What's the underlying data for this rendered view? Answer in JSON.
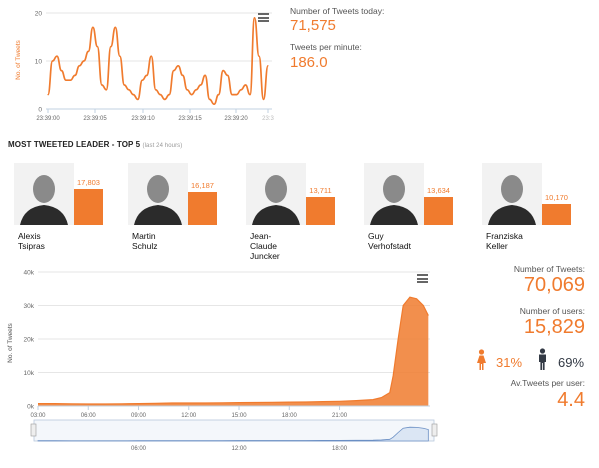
{
  "top_chart": {
    "ylabel": "No. of Tweets",
    "y_ticks": [
      "0",
      "10",
      "20"
    ],
    "x_ticks": [
      "23:39:00",
      "23:39:05",
      "23:39:10",
      "23:39:15",
      "23:39:20",
      "23:3"
    ],
    "color": "#f07b2e",
    "chart_data": {
      "type": "line",
      "xlabel": "",
      "ylabel": "No. of Tweets",
      "ylim": [
        0,
        20
      ],
      "x": [
        0,
        1,
        2,
        3,
        4,
        5,
        6,
        7,
        8,
        9,
        10,
        11,
        12,
        13,
        14,
        15,
        16,
        17,
        18,
        19,
        20,
        21,
        22,
        23,
        24,
        25,
        26,
        27,
        28,
        29,
        30,
        31,
        32,
        33,
        34,
        35,
        36,
        37,
        38,
        39,
        40,
        41,
        42,
        43,
        44,
        45,
        46,
        47,
        48,
        49
      ],
      "series": [
        {
          "values": [
            3,
            10,
            11,
            8,
            6,
            6,
            7,
            9,
            10,
            12,
            17,
            13,
            5,
            4,
            13,
            17,
            11,
            5,
            4,
            3,
            2,
            6,
            7,
            11,
            4,
            3,
            2,
            3,
            8,
            9,
            7,
            4,
            3,
            4,
            5,
            7,
            2,
            1,
            3,
            8,
            7,
            3,
            3,
            4,
            5,
            3,
            19,
            11,
            2,
            9
          ]
        }
      ]
    }
  },
  "today": {
    "tweets_label": "Number of Tweets today:",
    "tweets_value": "71,575",
    "per_minute_label": "Tweets per minute:",
    "per_minute_value": "186.0"
  },
  "leaders_section": {
    "title": "MOST TWEETED LEADER - TOP 5",
    "subtitle": "(last 24 hours)"
  },
  "leaders": [
    {
      "first": "Alexis",
      "last": "Tsipras",
      "value": 17803,
      "label": "17,803"
    },
    {
      "first": "Martin",
      "last": "Schulz",
      "value": 16187,
      "label": "16,187"
    },
    {
      "first": "Jean-",
      "last": "Claude",
      "extra": "Juncker",
      "value": 13711,
      "label": "13,711"
    },
    {
      "first": "Guy",
      "last": "Verhofstadt",
      "value": 13634,
      "label": "13,634"
    },
    {
      "first": "Franziska",
      "last": "Keller",
      "value": 10170,
      "label": "10,170"
    }
  ],
  "area_chart": {
    "ylabel": "No. of Tweets",
    "y_ticks": [
      "0k",
      "10k",
      "20k",
      "30k",
      "40k"
    ],
    "x_ticks": [
      "03:00",
      "06:00",
      "09:00",
      "12:00",
      "15:00",
      "18:00",
      "21:00"
    ],
    "navigator_ticks": [
      "06:00",
      "12:00",
      "18:00"
    ],
    "color": "#f07b2e",
    "chart_data": {
      "type": "area",
      "ylabel": "No. of Tweets",
      "ylim": [
        0,
        40000
      ],
      "x_hours": [
        0,
        1,
        2,
        3,
        4,
        5,
        6,
        7,
        8,
        9,
        10,
        11,
        12,
        13,
        14,
        15,
        16,
        17,
        18,
        19,
        20,
        20.5,
        21,
        21.2,
        21.5,
        21.8,
        22.2,
        22.6,
        23,
        23.3
      ],
      "series": [
        {
          "values": [
            700,
            700,
            650,
            600,
            600,
            650,
            700,
            800,
            900,
            900,
            900,
            950,
            1000,
            1050,
            1100,
            1150,
            1200,
            1300,
            1400,
            1600,
            1900,
            2500,
            4000,
            9000,
            20000,
            30000,
            32500,
            32000,
            30000,
            27000
          ]
        }
      ]
    }
  },
  "totals": {
    "tweets_label": "Number of Tweets:",
    "tweets_value": "70,069",
    "users_label": "Number of users:",
    "users_value": "15,829",
    "female_pct": "31%",
    "male_pct": "69%",
    "avg_label": "Av.Tweets per user:",
    "avg_value": "4.4"
  },
  "colors": {
    "accent": "#f07b2e",
    "male": "#333a45",
    "navigator": "#dbe6f4"
  }
}
